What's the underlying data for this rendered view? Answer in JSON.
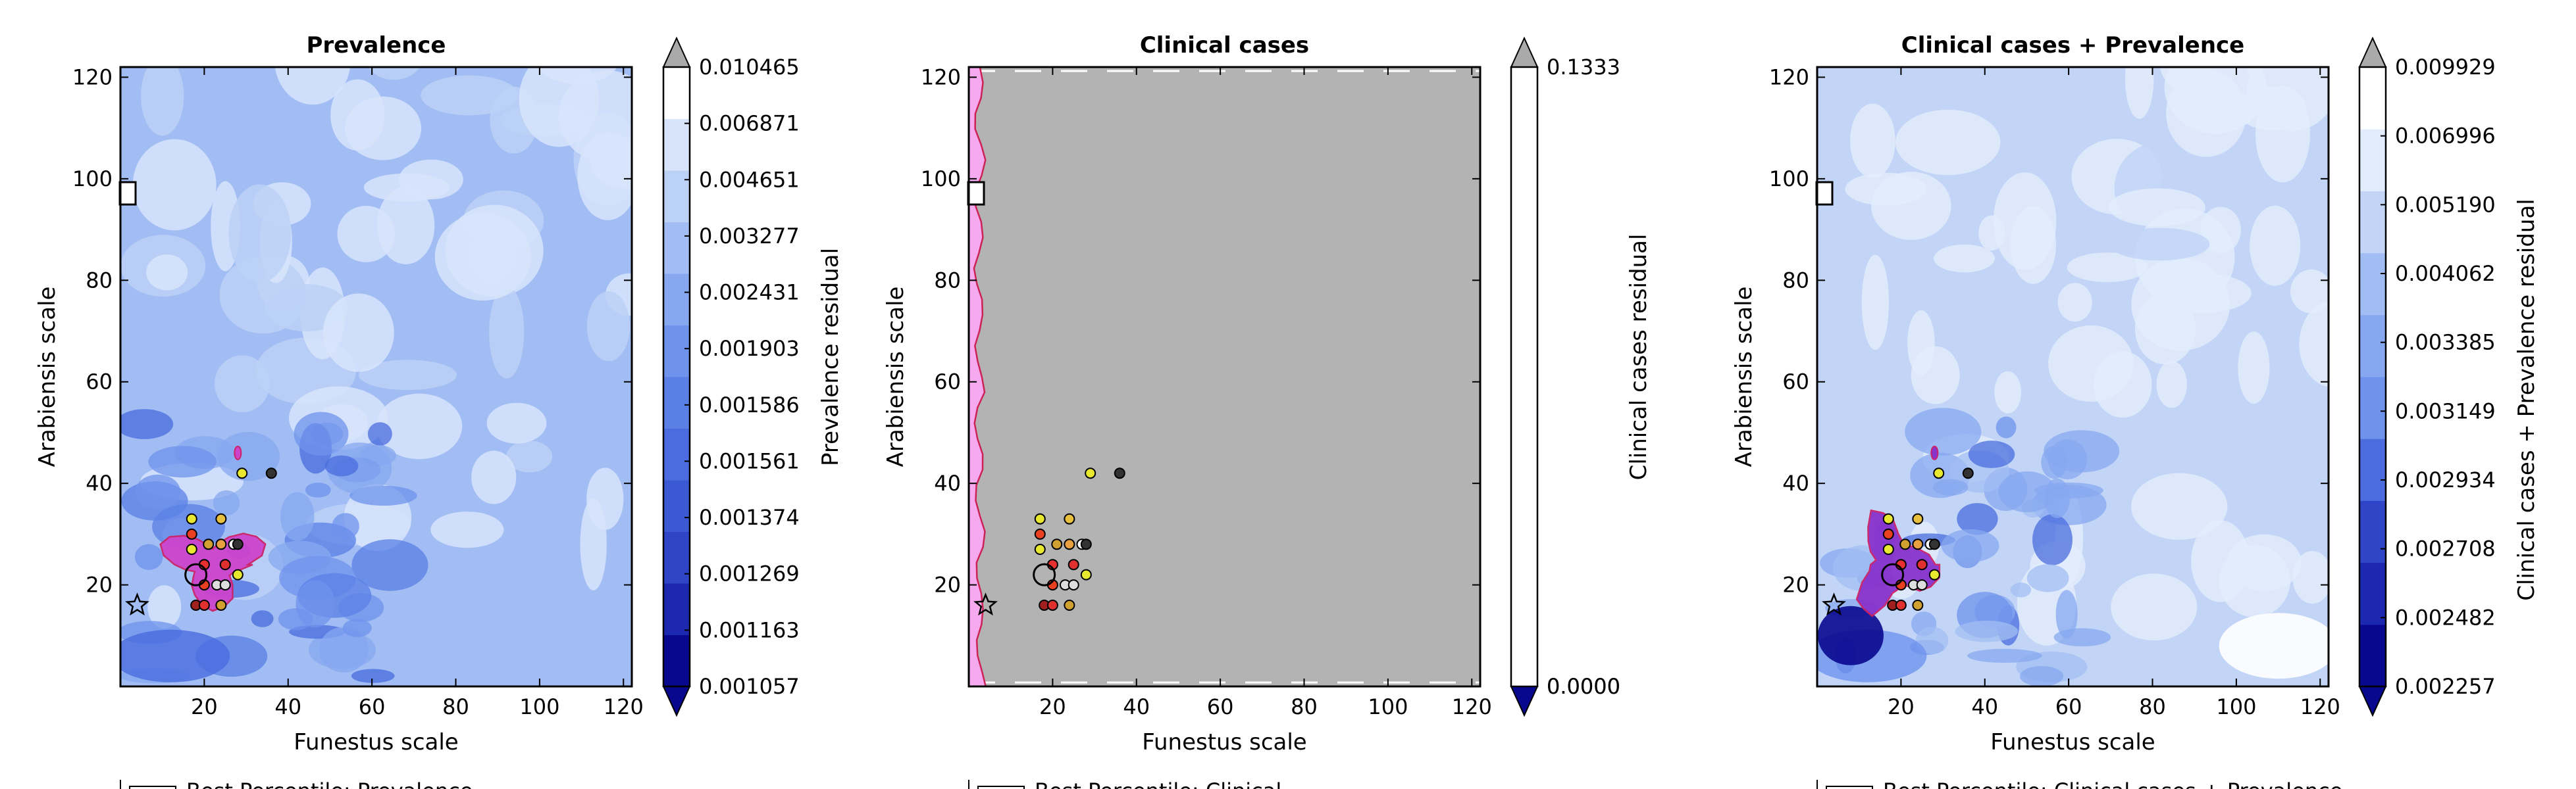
{
  "chart_data": [
    {
      "type": "contour",
      "title": "Prevalence",
      "xlabel": "Funestus scale",
      "ylabel": "Arabiensis scale",
      "xlim": [
        0,
        122
      ],
      "ylim": [
        0,
        122
      ],
      "xticks": [
        "20",
        "40",
        "60",
        "80",
        "100",
        "120"
      ],
      "yticks": [
        "20",
        "40",
        "60",
        "80",
        "100",
        "120"
      ],
      "colorbar": {
        "label": "Prevalence residual",
        "ticks": [
          "0.001057",
          "0.001163",
          "0.001269",
          "0.001374",
          "0.001561",
          "0.001586",
          "0.001903",
          "0.002431",
          "0.003277",
          "0.004651",
          "0.006871",
          "0.010465"
        ],
        "colors": [
          "#08088e",
          "#1c28b0",
          "#2f44c6",
          "#3b59d2",
          "#4a6cde",
          "#5a80e6",
          "#6f93ec",
          "#87a8f0",
          "#a1bdf3",
          "#bcd1f6",
          "#d7e4fa",
          "#ffffff"
        ],
        "extend_low_color": "#08088e",
        "extend_high_color": "#aaaaaa"
      },
      "highlight_region": {
        "fill": "#cc44cc",
        "edge": "#cc2266",
        "center": [
          22,
          24
        ],
        "extent": [
          12,
          8
        ]
      },
      "points": [
        {
          "x": 17,
          "y": 33,
          "color": "#e8e830"
        },
        {
          "x": 24,
          "y": 33,
          "color": "#e8c040"
        },
        {
          "x": 17,
          "y": 30,
          "color": "#e84020"
        },
        {
          "x": 17,
          "y": 27,
          "color": "#e8e830"
        },
        {
          "x": 21,
          "y": 28,
          "color": "#d0a030"
        },
        {
          "x": 24,
          "y": 28,
          "color": "#e8a040"
        },
        {
          "x": 27,
          "y": 28,
          "color": "#ffffff"
        },
        {
          "x": 28,
          "y": 28,
          "color": "#333333"
        },
        {
          "x": 20,
          "y": 24,
          "color": "#e83030"
        },
        {
          "x": 25,
          "y": 24,
          "color": "#e03030"
        },
        {
          "x": 23,
          "y": 20,
          "color": "#dddddd"
        },
        {
          "x": 25,
          "y": 20,
          "color": "#dddddd"
        },
        {
          "x": 28,
          "y": 22,
          "color": "#e8e830"
        },
        {
          "x": 20,
          "y": 20,
          "color": "#e84020"
        },
        {
          "x": 18,
          "y": 16,
          "color": "#a02020"
        },
        {
          "x": 20,
          "y": 16,
          "color": "#e03030"
        },
        {
          "x": 24,
          "y": 16,
          "color": "#d0a030"
        },
        {
          "x": 29,
          "y": 42,
          "color": "#e8e830"
        },
        {
          "x": 36,
          "y": 42,
          "color": "#333333"
        }
      ],
      "circle_marker": {
        "x": 18,
        "y": 22
      },
      "star_marker": {
        "x": 4,
        "y": 16
      },
      "square_marker": {
        "x": 0.5,
        "y": 97
      },
      "legend_text": "Best Percentile: Prevalence"
    },
    {
      "type": "contour",
      "title": "Clinical cases",
      "xlabel": "Funestus scale",
      "ylabel": "Arabiensis scale",
      "xlim": [
        0,
        122
      ],
      "ylim": [
        0,
        122
      ],
      "xticks": [
        "20",
        "40",
        "60",
        "80",
        "100",
        "120"
      ],
      "yticks": [
        "20",
        "40",
        "60",
        "80",
        "100",
        "120"
      ],
      "colorbar": {
        "label": "Clinical cases residual",
        "ticks": [
          "0.0000",
          "0.0000",
          "0.1333"
        ],
        "colors": [
          "#ffffff"
        ],
        "extend_low_color": "#08088e",
        "extend_high_color": "#aaaaaa"
      },
      "background_color": "#b3b3b3",
      "highlight_strip": {
        "fill": "#f5aaf0",
        "edge": "#cc2255",
        "x_max": 4
      },
      "points": [
        {
          "x": 17,
          "y": 33,
          "color": "#e8e830"
        },
        {
          "x": 24,
          "y": 33,
          "color": "#e8c040"
        },
        {
          "x": 17,
          "y": 30,
          "color": "#e84020"
        },
        {
          "x": 17,
          "y": 27,
          "color": "#e8e830"
        },
        {
          "x": 21,
          "y": 28,
          "color": "#d0a030"
        },
        {
          "x": 24,
          "y": 28,
          "color": "#e8a040"
        },
        {
          "x": 27,
          "y": 28,
          "color": "#ffffff"
        },
        {
          "x": 28,
          "y": 28,
          "color": "#333333"
        },
        {
          "x": 20,
          "y": 24,
          "color": "#e83030"
        },
        {
          "x": 25,
          "y": 24,
          "color": "#e03030"
        },
        {
          "x": 23,
          "y": 20,
          "color": "#dddddd"
        },
        {
          "x": 25,
          "y": 20,
          "color": "#dddddd"
        },
        {
          "x": 28,
          "y": 22,
          "color": "#e8e830"
        },
        {
          "x": 20,
          "y": 20,
          "color": "#e84020"
        },
        {
          "x": 18,
          "y": 16,
          "color": "#a02020"
        },
        {
          "x": 20,
          "y": 16,
          "color": "#e03030"
        },
        {
          "x": 24,
          "y": 16,
          "color": "#d0a030"
        },
        {
          "x": 29,
          "y": 42,
          "color": "#e8e830"
        },
        {
          "x": 36,
          "y": 42,
          "color": "#333333"
        }
      ],
      "circle_marker": {
        "x": 18,
        "y": 22
      },
      "star_marker": {
        "x": 4,
        "y": 16
      },
      "square_marker": {
        "x": 0.5,
        "y": 97
      },
      "legend_text": "Best Percentile: Clinical"
    },
    {
      "type": "contour",
      "title": "Clinical cases + Prevalence",
      "xlabel": "Funestus scale",
      "ylabel": "Arabiensis scale",
      "xlim": [
        0,
        122
      ],
      "ylim": [
        0,
        122
      ],
      "xticks": [
        "20",
        "40",
        "60",
        "80",
        "100",
        "120"
      ],
      "yticks": [
        "20",
        "40",
        "60",
        "80",
        "100",
        "120"
      ],
      "colorbar": {
        "label": "Clinical cases + Prevalence residual",
        "ticks": [
          "0.002257",
          "0.002482",
          "0.002708",
          "0.002934",
          "0.003149",
          "0.003385",
          "0.004062",
          "0.005190",
          "0.006996",
          "0.009929"
        ],
        "colors": [
          "#08088e",
          "#1c28b0",
          "#2f44c6",
          "#4a6cde",
          "#6f93ec",
          "#87a8f0",
          "#a1bdf3",
          "#c2d5f7",
          "#e2ecfc",
          "#ffffff"
        ],
        "extend_low_color": "#08088e",
        "extend_high_color": "#aaaaaa"
      },
      "highlight_region": {
        "fill": "#8833cc",
        "edge": "#cc2266",
        "center": [
          18,
          24
        ],
        "extent": [
          10,
          10
        ]
      },
      "points": [
        {
          "x": 17,
          "y": 33,
          "color": "#e8e830"
        },
        {
          "x": 24,
          "y": 33,
          "color": "#e8c040"
        },
        {
          "x": 17,
          "y": 30,
          "color": "#e84020"
        },
        {
          "x": 17,
          "y": 27,
          "color": "#e8e830"
        },
        {
          "x": 21,
          "y": 28,
          "color": "#d0a030"
        },
        {
          "x": 24,
          "y": 28,
          "color": "#e8a040"
        },
        {
          "x": 27,
          "y": 28,
          "color": "#ffffff"
        },
        {
          "x": 28,
          "y": 28,
          "color": "#333333"
        },
        {
          "x": 20,
          "y": 24,
          "color": "#e83030"
        },
        {
          "x": 25,
          "y": 24,
          "color": "#e03030"
        },
        {
          "x": 23,
          "y": 20,
          "color": "#dddddd"
        },
        {
          "x": 25,
          "y": 20,
          "color": "#dddddd"
        },
        {
          "x": 28,
          "y": 22,
          "color": "#e8e830"
        },
        {
          "x": 20,
          "y": 20,
          "color": "#e84020"
        },
        {
          "x": 18,
          "y": 16,
          "color": "#a02020"
        },
        {
          "x": 20,
          "y": 16,
          "color": "#e03030"
        },
        {
          "x": 24,
          "y": 16,
          "color": "#d0a030"
        },
        {
          "x": 29,
          "y": 42,
          "color": "#e8e830"
        },
        {
          "x": 36,
          "y": 42,
          "color": "#333333"
        }
      ],
      "circle_marker": {
        "x": 18,
        "y": 22
      },
      "star_marker": {
        "x": 4,
        "y": 16
      },
      "square_marker": {
        "x": 0.5,
        "y": 97
      },
      "legend_text": "Best Percentile: Clinical cases + Prevalence"
    }
  ]
}
